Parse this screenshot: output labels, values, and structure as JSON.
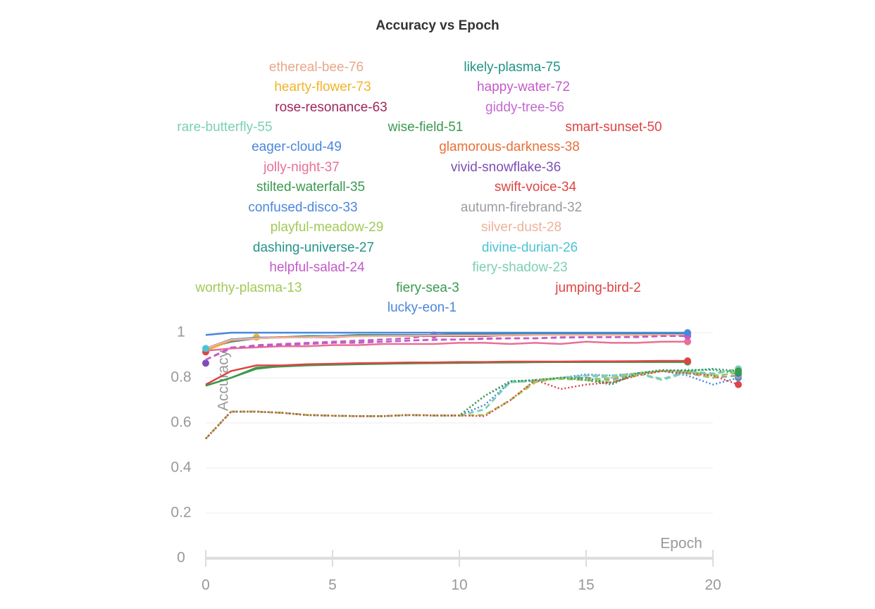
{
  "chart_data": {
    "type": "line",
    "title": "Accuracy vs Epoch",
    "x_label": "Epoch",
    "y_label": "Accuracy",
    "x": [
      0,
      1,
      2,
      3,
      4,
      5,
      6,
      7,
      8,
      9,
      10,
      11,
      12,
      13,
      14,
      15,
      16,
      17,
      18,
      19,
      20,
      21
    ],
    "xlim": [
      0,
      20
    ],
    "xticks": [
      0,
      5,
      10,
      15,
      20
    ],
    "ylim": [
      0,
      1
    ],
    "yticks": [
      0,
      0.2,
      0.4,
      0.6,
      0.8,
      1
    ],
    "grid": true,
    "series": [
      {
        "name": "ethereal-bee-76",
        "color": "#e8a88a",
        "dash": "solid",
        "values": [
          0.93,
          0.97,
          0.975,
          0.98,
          0.98,
          0.985,
          0.985,
          0.985,
          0.99,
          0.99,
          0.99,
          0.99,
          0.99,
          0.99,
          0.99,
          0.99,
          0.99,
          0.99,
          0.99,
          0.99,
          null,
          null
        ]
      },
      {
        "name": "likely-plasma-75",
        "color": "#229487",
        "dash": "solid",
        "values": [
          0.93,
          0.96,
          0.975,
          0.98,
          0.985,
          0.985,
          0.99,
          0.99,
          0.99,
          0.99,
          0.995,
          0.995,
          0.995,
          0.995,
          0.995,
          0.995,
          0.995,
          0.995,
          0.995,
          0.995,
          null,
          null
        ]
      },
      {
        "name": "hearty-flower-73",
        "color": "#f0b429",
        "dash": "solid",
        "values": [
          0.92,
          0.965,
          0.98,
          null,
          null,
          null,
          null,
          null,
          null,
          null,
          null,
          null,
          null,
          null,
          null,
          null,
          null,
          null,
          null,
          null,
          null,
          null
        ]
      },
      {
        "name": "happy-water-72",
        "color": "#c45ac8",
        "dash": "dashed",
        "values": [
          0.88,
          0.93,
          0.945,
          0.95,
          0.955,
          0.96,
          0.965,
          0.97,
          0.975,
          0.99,
          null,
          null,
          null,
          null,
          null,
          null,
          null,
          null,
          null,
          null,
          null,
          null
        ]
      },
      {
        "name": "rose-resonance-63",
        "color": "#a0265a",
        "dash": "solid",
        "values": [
          0.93,
          0.97,
          0.975,
          0.98,
          0.98,
          0.98,
          0.985,
          0.985,
          0.985,
          0.985,
          0.985,
          0.985,
          0.99,
          0.99,
          0.99,
          0.99,
          0.99,
          0.99,
          0.99,
          0.99,
          null,
          null
        ]
      },
      {
        "name": "giddy-tree-56",
        "color": "#c36ad0",
        "dash": "dashed",
        "values": [
          0.88,
          0.93,
          0.94,
          0.945,
          0.95,
          0.955,
          0.96,
          0.96,
          0.965,
          0.97,
          0.97,
          0.975,
          0.975,
          0.975,
          0.98,
          0.98,
          0.98,
          0.98,
          0.985,
          0.985,
          null,
          null
        ]
      },
      {
        "name": "rare-butterfly-55",
        "color": "#7ccfb5",
        "dash": "dashed",
        "values": [
          0.53,
          0.65,
          0.65,
          0.645,
          0.635,
          0.632,
          0.63,
          0.63,
          0.635,
          0.633,
          0.633,
          0.66,
          0.785,
          0.785,
          0.8,
          0.81,
          0.8,
          0.82,
          0.795,
          0.83,
          0.82,
          0.835
        ]
      },
      {
        "name": "wise-field-51",
        "color": "#3a9a4f",
        "dash": "solid",
        "values": [
          0.765,
          0.8,
          0.845,
          0.85,
          0.855,
          0.858,
          0.86,
          0.862,
          0.864,
          0.865,
          0.866,
          0.867,
          0.868,
          0.869,
          0.87,
          0.87,
          0.87,
          0.87,
          0.87,
          0.87,
          null,
          null
        ]
      },
      {
        "name": "smart-sunset-50",
        "color": "#de4444",
        "dash": "solid",
        "values": [
          0.915,
          null,
          null,
          null,
          null,
          null,
          null,
          null,
          null,
          null,
          null,
          null,
          null,
          null,
          null,
          null,
          null,
          null,
          null,
          null,
          null,
          null
        ]
      },
      {
        "name": "eager-cloud-49",
        "color": "#4a86dc",
        "dash": "solid",
        "values": [
          0.93,
          0.97,
          0.978,
          0.98,
          0.982,
          0.985,
          0.985,
          0.987,
          0.988,
          0.99,
          0.99,
          0.99,
          0.99,
          0.99,
          0.99,
          0.99,
          0.99,
          0.99,
          0.99,
          0.99,
          null,
          null
        ]
      },
      {
        "name": "glamorous-darkness-38",
        "color": "#e8703a",
        "dash": "solid",
        "values": [
          0.93,
          0.965,
          0.975,
          0.98,
          0.98,
          0.982,
          0.985,
          0.985,
          0.985,
          0.987,
          0.987,
          0.988,
          0.988,
          0.99,
          0.99,
          0.99,
          0.99,
          0.99,
          0.99,
          0.99,
          null,
          null
        ]
      },
      {
        "name": "jolly-night-37",
        "color": "#e87095",
        "dash": "solid",
        "values": [
          0.92,
          0.93,
          0.935,
          0.94,
          0.94,
          0.945,
          0.945,
          0.95,
          0.95,
          0.95,
          0.955,
          0.955,
          0.95,
          0.955,
          0.95,
          0.96,
          0.955,
          0.955,
          0.96,
          0.96,
          null,
          null
        ]
      },
      {
        "name": "vivid-snowflake-36",
        "color": "#7d4fb5",
        "dash": "solid",
        "values": [
          0.865,
          null,
          null,
          null,
          null,
          null,
          null,
          null,
          null,
          null,
          null,
          null,
          null,
          null,
          null,
          null,
          null,
          null,
          null,
          null,
          null,
          null
        ]
      },
      {
        "name": "stilted-waterfall-35",
        "color": "#3a9a4f",
        "dash": "solid",
        "values": [
          0.765,
          0.8,
          0.84,
          0.852,
          0.857,
          0.86,
          0.861,
          0.863,
          0.864,
          0.866,
          0.866,
          0.868,
          0.868,
          0.87,
          0.87,
          0.87,
          0.871,
          0.871,
          0.872,
          0.872,
          null,
          null
        ]
      },
      {
        "name": "swift-voice-34",
        "color": "#de4444",
        "dash": "solid",
        "values": [
          0.77,
          0.83,
          0.855,
          0.855,
          0.86,
          0.862,
          0.865,
          0.866,
          0.868,
          0.868,
          0.87,
          0.87,
          0.872,
          0.872,
          0.872,
          0.873,
          0.873,
          0.874,
          0.875,
          0.875,
          null,
          null
        ]
      },
      {
        "name": "confused-disco-33",
        "color": "#4a86dc",
        "dash": "dotted",
        "values": [
          0.53,
          0.65,
          0.65,
          0.645,
          0.635,
          0.632,
          0.63,
          0.63,
          0.635,
          0.633,
          0.633,
          0.68,
          0.78,
          0.79,
          0.8,
          0.815,
          0.81,
          0.82,
          0.83,
          0.81,
          0.77,
          0.8
        ]
      },
      {
        "name": "autumn-firebrand-32",
        "color": "#999ca3",
        "dash": "dashed",
        "values": [
          0.53,
          0.65,
          0.65,
          0.645,
          0.635,
          0.632,
          0.63,
          0.63,
          0.635,
          0.633,
          0.633,
          0.635,
          0.7,
          0.79,
          0.8,
          0.8,
          0.79,
          0.82,
          0.83,
          0.82,
          0.8,
          0.81
        ]
      },
      {
        "name": "playful-meadow-29",
        "color": "#a3c957",
        "dash": "dashed",
        "values": [
          0.53,
          0.65,
          0.65,
          0.645,
          0.635,
          0.632,
          0.63,
          0.63,
          0.635,
          0.633,
          0.633,
          0.635,
          0.7,
          0.78,
          0.8,
          0.79,
          0.78,
          0.81,
          0.83,
          0.83,
          0.81,
          0.82
        ]
      },
      {
        "name": "silver-dust-28",
        "color": "#eeb39a",
        "dash": "solid",
        "values": [
          0.93,
          0.968,
          0.975,
          0.978,
          0.98,
          0.982,
          0.984,
          0.985,
          0.986,
          0.987,
          0.988,
          0.988,
          0.989,
          0.99,
          0.99,
          0.99,
          0.99,
          0.99,
          0.99,
          0.99,
          null,
          null
        ]
      },
      {
        "name": "dashing-universe-27",
        "color": "#229487",
        "dash": "dotted",
        "values": [
          0.53,
          0.65,
          0.65,
          0.645,
          0.635,
          0.632,
          0.63,
          0.63,
          0.635,
          0.633,
          0.633,
          0.72,
          0.78,
          0.79,
          0.8,
          0.8,
          0.775,
          0.82,
          0.83,
          0.835,
          0.835,
          0.82
        ]
      },
      {
        "name": "divine-durian-26",
        "color": "#4cc3d3",
        "dash": "solid",
        "values": [
          0.93,
          null,
          null,
          null,
          null,
          null,
          null,
          null,
          null,
          null,
          null,
          null,
          null,
          null,
          null,
          null,
          null,
          null,
          null,
          null,
          null,
          null
        ]
      },
      {
        "name": "helpful-salad-24",
        "color": "#c45ac8",
        "dash": "dashed",
        "values": [
          0.88,
          0.935,
          0.94,
          0.945,
          0.95,
          0.955,
          0.955,
          0.96,
          0.965,
          0.968,
          0.97,
          0.972,
          0.975,
          0.975,
          0.978,
          0.98,
          0.98,
          0.982,
          0.985,
          0.985,
          null,
          null
        ]
      },
      {
        "name": "fiery-shadow-23",
        "color": "#7ccfb5",
        "dash": "dashed",
        "values": [
          0.53,
          0.65,
          0.65,
          0.645,
          0.635,
          0.632,
          0.63,
          0.63,
          0.635,
          0.633,
          0.633,
          0.66,
          0.78,
          0.785,
          0.8,
          0.81,
          0.81,
          0.82,
          0.79,
          0.825,
          0.815,
          0.84
        ]
      },
      {
        "name": "worthy-plasma-13",
        "color": "#a3c957",
        "dash": "dashed",
        "values": [
          0.53,
          0.65,
          0.65,
          0.645,
          0.635,
          0.632,
          0.63,
          0.63,
          0.635,
          0.633,
          0.633,
          0.635,
          0.7,
          0.79,
          0.795,
          0.79,
          0.8,
          0.82,
          0.83,
          0.825,
          0.8,
          0.83
        ]
      },
      {
        "name": "fiery-sea-3",
        "color": "#3a9a4f",
        "dash": "dotted",
        "values": [
          0.53,
          0.65,
          0.65,
          0.645,
          0.635,
          0.632,
          0.63,
          0.63,
          0.635,
          0.633,
          0.633,
          0.72,
          0.785,
          0.79,
          0.8,
          0.79,
          0.77,
          0.82,
          0.835,
          0.83,
          0.84,
          0.83
        ]
      },
      {
        "name": "jumping-bird-2",
        "color": "#de4444",
        "dash": "dotted",
        "values": [
          0.53,
          0.65,
          0.65,
          0.645,
          0.635,
          0.632,
          0.63,
          0.63,
          0.635,
          0.633,
          0.633,
          0.63,
          0.7,
          0.79,
          0.75,
          0.77,
          0.78,
          0.81,
          0.83,
          0.82,
          0.81,
          0.77
        ]
      },
      {
        "name": "lucky-eon-1",
        "color": "#4a86dc",
        "dash": "solid",
        "values": [
          0.99,
          1,
          1,
          1,
          1,
          1,
          1,
          1,
          1,
          1,
          1,
          1,
          1,
          1,
          1,
          1,
          1,
          1,
          1,
          1,
          null,
          null
        ]
      }
    ]
  }
}
